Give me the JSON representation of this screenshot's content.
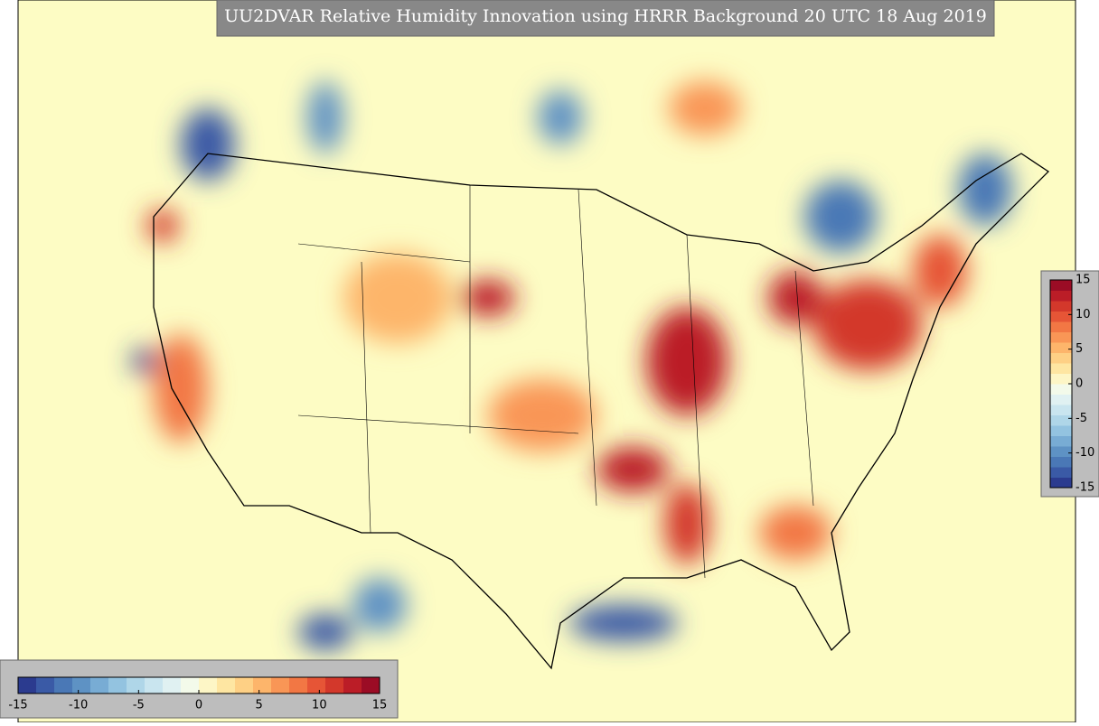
{
  "title": "UU2DVAR Relative Humidity Innovation using HRRR Background 20 UTC 18 Aug 2019",
  "colormap": {
    "range": [
      -15,
      15
    ],
    "colors": [
      "#2b3b8f",
      "#3a5aa6",
      "#4a78b6",
      "#5e92c4",
      "#78acd4",
      "#93c3e0",
      "#afd6e8",
      "#c9e5ef",
      "#e0f1f2",
      "#f3faea",
      "#fdf6c6",
      "#fee6a2",
      "#fed085",
      "#fdb56b",
      "#f99656",
      "#f27744",
      "#e65536",
      "#d3382b",
      "#bb1d27",
      "#9b0c25"
    ]
  },
  "colorbar_bottom": {
    "ticks": [
      -15,
      -10,
      -5,
      0,
      5,
      10,
      15
    ]
  },
  "colorbar_right": {
    "ticks": [
      15,
      10,
      5,
      0,
      -5,
      -10,
      -15
    ]
  }
}
